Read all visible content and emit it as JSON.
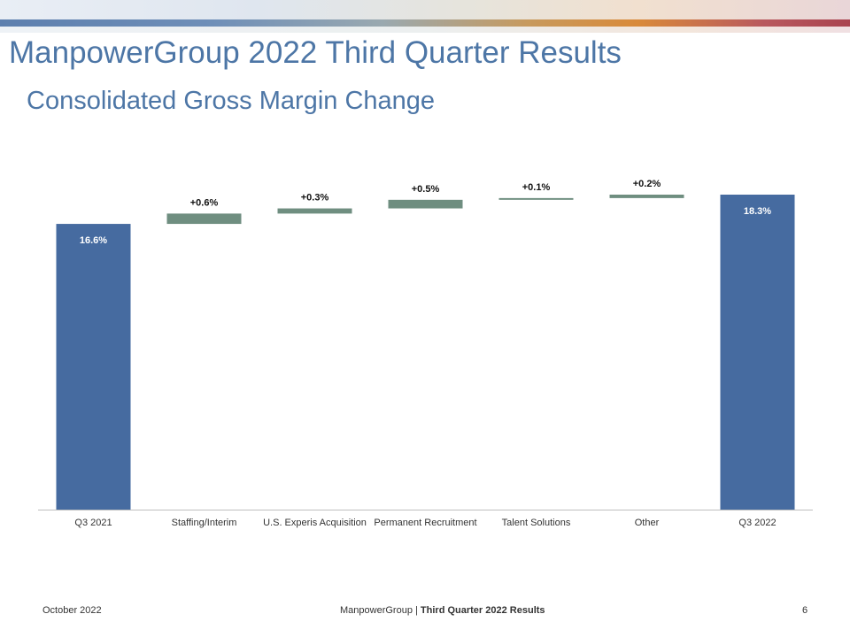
{
  "slide": {
    "title": "ManpowerGroup 2022 Third Quarter Results",
    "subtitle": "Consolidated Gross Margin Change",
    "page_number": "6"
  },
  "footer": {
    "date": "October 2022",
    "company": "ManpowerGroup",
    "separator": " | ",
    "report": "Third Quarter 2022 Results"
  },
  "colors": {
    "total_bar": "#466ba0",
    "change_bar": "#6f8e80",
    "axis": "#bfbfbf"
  },
  "chart_data": {
    "type": "bar",
    "subtype": "waterfall",
    "categories": [
      "Q3 2021",
      "Staffing/Interim",
      "U.S. Experis Acquisition",
      "Permanent Recruitment",
      "Talent Solutions",
      "Other",
      "Q3 2022"
    ],
    "values": [
      16.6,
      0.6,
      0.3,
      0.5,
      0.1,
      0.2,
      18.3
    ],
    "kinds": [
      "total",
      "change",
      "change",
      "change",
      "change",
      "change",
      "total"
    ],
    "labels": [
      "16.6%",
      "+0.6%",
      "+0.3%",
      "+0.5%",
      "+0.1%",
      "+0.2%",
      "18.3%"
    ],
    "unit": "%",
    "ylim": [
      0,
      18.3
    ],
    "grid": false,
    "legend": "none"
  }
}
